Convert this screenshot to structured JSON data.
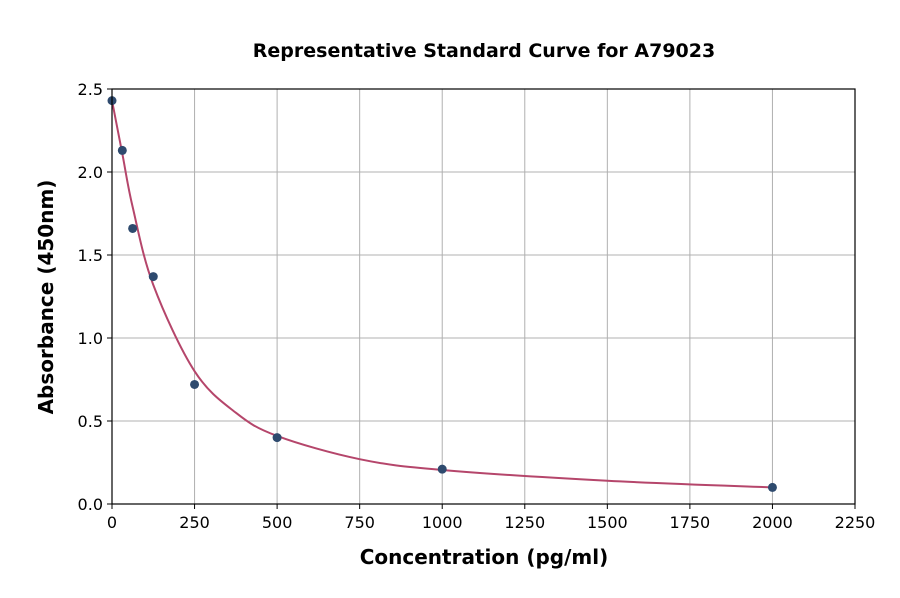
{
  "chart_data": {
    "type": "scatter",
    "title": "Representative Standard Curve for A79023",
    "xlabel": "Concentration (pg/ml)",
    "ylabel": "Absorbance (450nm)",
    "xlim": [
      0,
      2250
    ],
    "ylim": [
      0,
      2.5
    ],
    "xticks": [
      "0",
      "250",
      "500",
      "750",
      "1000",
      "1250",
      "1500",
      "1750",
      "2000",
      "2250"
    ],
    "yticks": [
      "0.0",
      "0.5",
      "1.0",
      "1.5",
      "2.0",
      "2.5"
    ],
    "grid": true,
    "series": [
      {
        "kind": "points",
        "color": "#2e4a6e",
        "x": [
          0,
          31.25,
          62.5,
          125,
          250,
          500,
          1000,
          2000
        ],
        "y": [
          2.43,
          2.13,
          1.66,
          1.37,
          0.72,
          0.4,
          0.21,
          0.1
        ]
      },
      {
        "kind": "fit-curve",
        "color": "#b5466b",
        "x": [
          0,
          31.25,
          62.5,
          125,
          250,
          375,
          500,
          750,
          1000,
          1500,
          2000
        ],
        "y": [
          2.43,
          2.11,
          1.79,
          1.32,
          0.8,
          0.55,
          0.41,
          0.27,
          0.205,
          0.14,
          0.1
        ]
      }
    ]
  }
}
